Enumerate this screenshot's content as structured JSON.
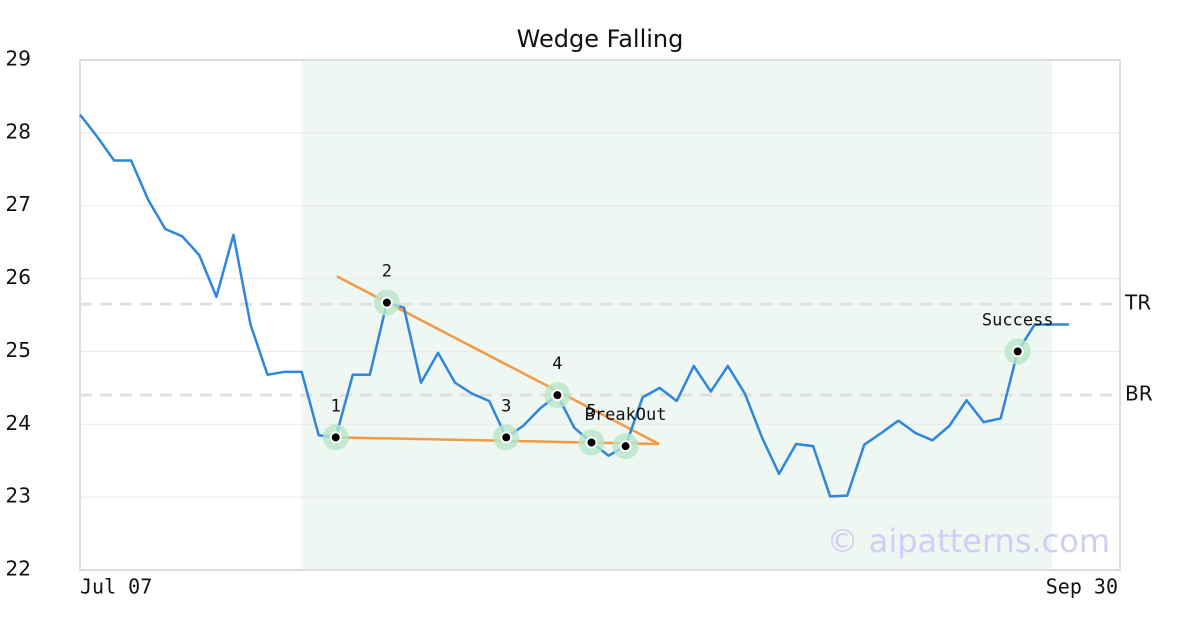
{
  "chart_data": {
    "type": "line",
    "title": "Wedge Falling",
    "x": [
      0,
      1,
      2,
      3,
      4,
      5,
      6,
      7,
      8,
      9,
      10,
      11,
      12,
      13,
      14,
      15,
      16,
      17,
      18,
      19,
      20,
      21,
      22,
      23,
      24,
      25,
      26,
      27,
      28,
      29,
      30,
      31,
      32,
      33,
      34,
      35,
      36,
      37,
      38,
      39,
      40,
      41,
      42,
      43,
      44,
      45,
      46,
      47,
      48,
      49,
      50,
      51,
      52,
      53,
      54,
      55,
      56,
      57,
      58
    ],
    "series": [
      {
        "color": "#2f86dd",
        "values": [
          28.25,
          27.95,
          27.62,
          27.62,
          27.08,
          26.68,
          26.58,
          26.32,
          25.75,
          26.6,
          25.37,
          24.68,
          24.72,
          24.72,
          23.85,
          23.82,
          24.68,
          24.68,
          25.67,
          25.6,
          24.57,
          24.98,
          24.57,
          24.42,
          24.32,
          23.82,
          23.98,
          24.22,
          24.4,
          23.95,
          23.75,
          23.57,
          23.7,
          24.37,
          24.5,
          24.32,
          24.8,
          24.45,
          24.8,
          24.42,
          23.82,
          23.32,
          23.73,
          23.7,
          23.01,
          23.02,
          23.72,
          23.88,
          24.05,
          23.88,
          23.78,
          23.98,
          24.33,
          24.03,
          24.08,
          25.0,
          25.37,
          25.37,
          25.37
        ]
      }
    ],
    "xlim": [
      0,
      61
    ],
    "xticks": [
      {
        "value": 0,
        "label": "Jul 07"
      },
      {
        "value": 61,
        "label": "Sep 30"
      }
    ],
    "ylim": [
      22,
      29
    ],
    "yticks": [
      22,
      23,
      24,
      25,
      26,
      27,
      28,
      29
    ],
    "grid": true,
    "highlight_range": [
      13,
      57
    ],
    "highlight_color": "#eef7f2",
    "levels": [
      {
        "label": "TR",
        "value": 25.65
      },
      {
        "label": "BR",
        "value": 24.4
      }
    ],
    "trendline_color": "#f59a42",
    "trendlines": [
      {
        "x": [
          15.07,
          33.96
        ],
        "y": [
          26.03,
          23.73
        ]
      },
      {
        "x": [
          15.07,
          33.96
        ],
        "y": [
          23.82,
          23.73
        ]
      }
    ],
    "annotations": [
      {
        "label": "1",
        "x": 15,
        "y": 23.82
      },
      {
        "label": "2",
        "x": 18,
        "y": 25.67
      },
      {
        "label": "3",
        "x": 25,
        "y": 23.82
      },
      {
        "label": "4",
        "x": 28,
        "y": 24.4
      },
      {
        "label": "5",
        "x": 30,
        "y": 23.75
      },
      {
        "label": "BreakOut",
        "x": 32,
        "y": 23.7
      },
      {
        "label": "Success",
        "x": 55,
        "y": 25.0
      }
    ],
    "watermark": "© aipatterns.com"
  }
}
